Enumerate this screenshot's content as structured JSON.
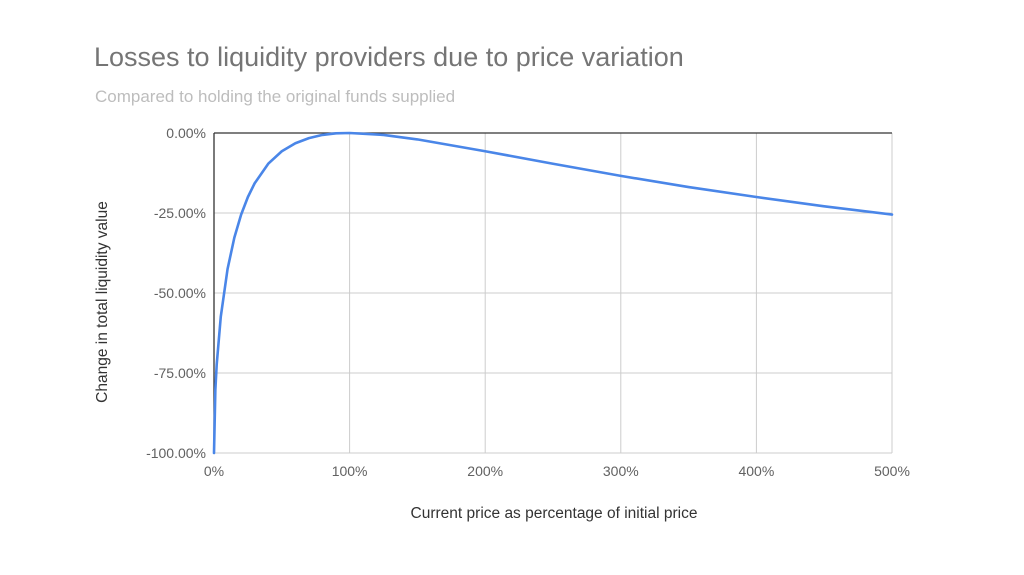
{
  "chart_data": {
    "type": "line",
    "title": "Losses to liquidity providers due to price variation",
    "subtitle": "Compared to holding the original funds supplied",
    "xlabel": "Current price as percentage of initial price",
    "ylabel": "Change in total liquidity value",
    "xlim": [
      0,
      500
    ],
    "ylim": [
      -100,
      0
    ],
    "x_ticks": [
      "0%",
      "100%",
      "200%",
      "300%",
      "400%",
      "500%"
    ],
    "y_ticks": [
      "0.00%",
      "-25.00%",
      "-50.00%",
      "-75.00%",
      "-100.00%"
    ],
    "grid": true,
    "legend": "none",
    "series": [
      {
        "color": "#4a86e8",
        "x": [
          0,
          1,
          2,
          5,
          10,
          15,
          20,
          25,
          30,
          40,
          50,
          60,
          70,
          80,
          90,
          100,
          125,
          150,
          200,
          250,
          300,
          350,
          400,
          450,
          500
        ],
        "y": [
          -100,
          -80.2,
          -72.3,
          -57.4,
          -42.5,
          -32.7,
          -25.5,
          -20.0,
          -15.7,
          -9.6,
          -5.7,
          -3.2,
          -1.6,
          -0.6,
          -0.1,
          0,
          -0.6,
          -2.0,
          -5.7,
          -9.6,
          -13.4,
          -16.9,
          -20.0,
          -22.9,
          -25.5
        ]
      }
    ]
  }
}
